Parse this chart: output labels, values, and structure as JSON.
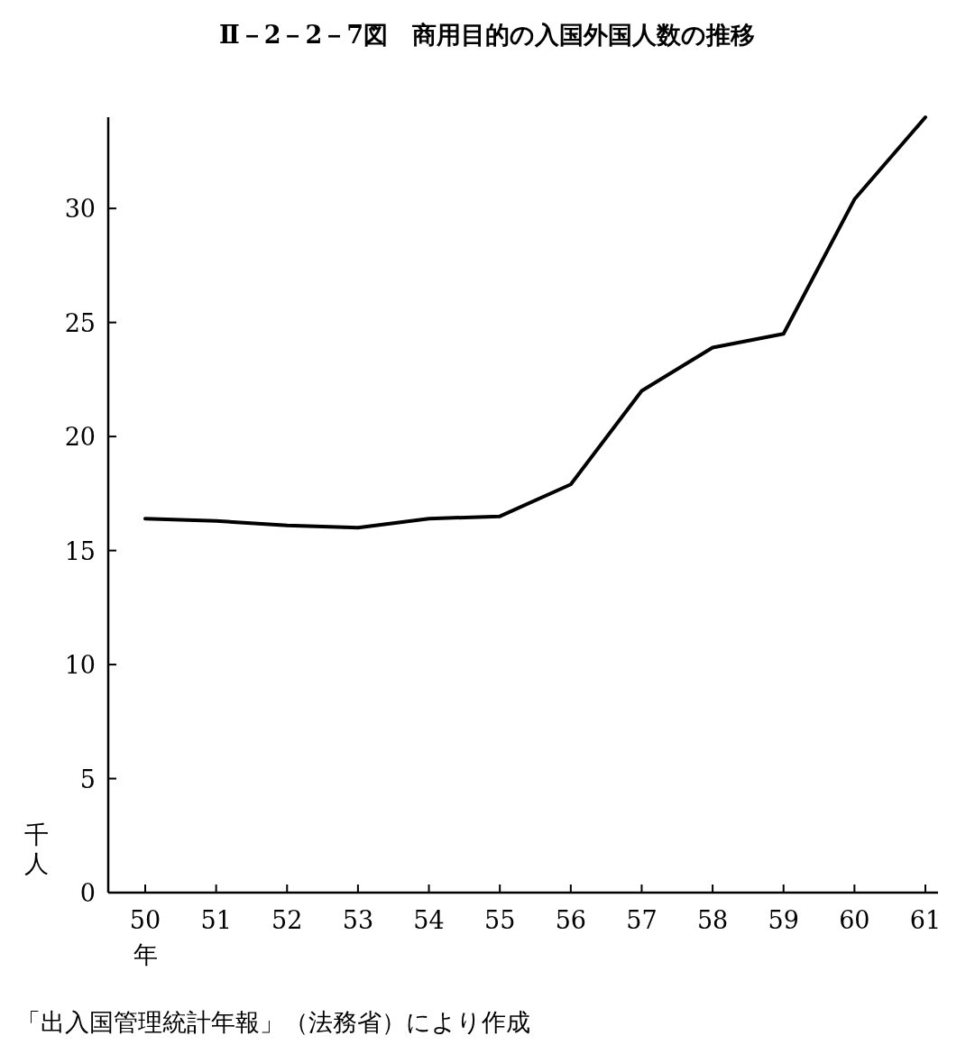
{
  "chart_data": {
    "type": "line",
    "title": "Ⅱ－2－2－7図　商用目的の入国外国人数の推移",
    "xlabel": "年",
    "ylabel": "千人",
    "categories": [
      "50",
      "51",
      "52",
      "53",
      "54",
      "55",
      "56",
      "57",
      "58",
      "59",
      "60",
      "61"
    ],
    "series": [
      {
        "color": "#000000",
        "values": [
          16.4,
          16.3,
          16.1,
          16.0,
          16.4,
          16.5,
          17.9,
          22.0,
          23.9,
          24.5,
          30.4,
          34.0
        ]
      }
    ],
    "ylim": [
      0,
      34
    ],
    "yticks": [
      0,
      5,
      10,
      15,
      20,
      25,
      30
    ],
    "grid": false,
    "marker": "none",
    "line_style": "solid",
    "annotations": [
      "「出入国管理統計年報」（法務省）により作成"
    ]
  }
}
